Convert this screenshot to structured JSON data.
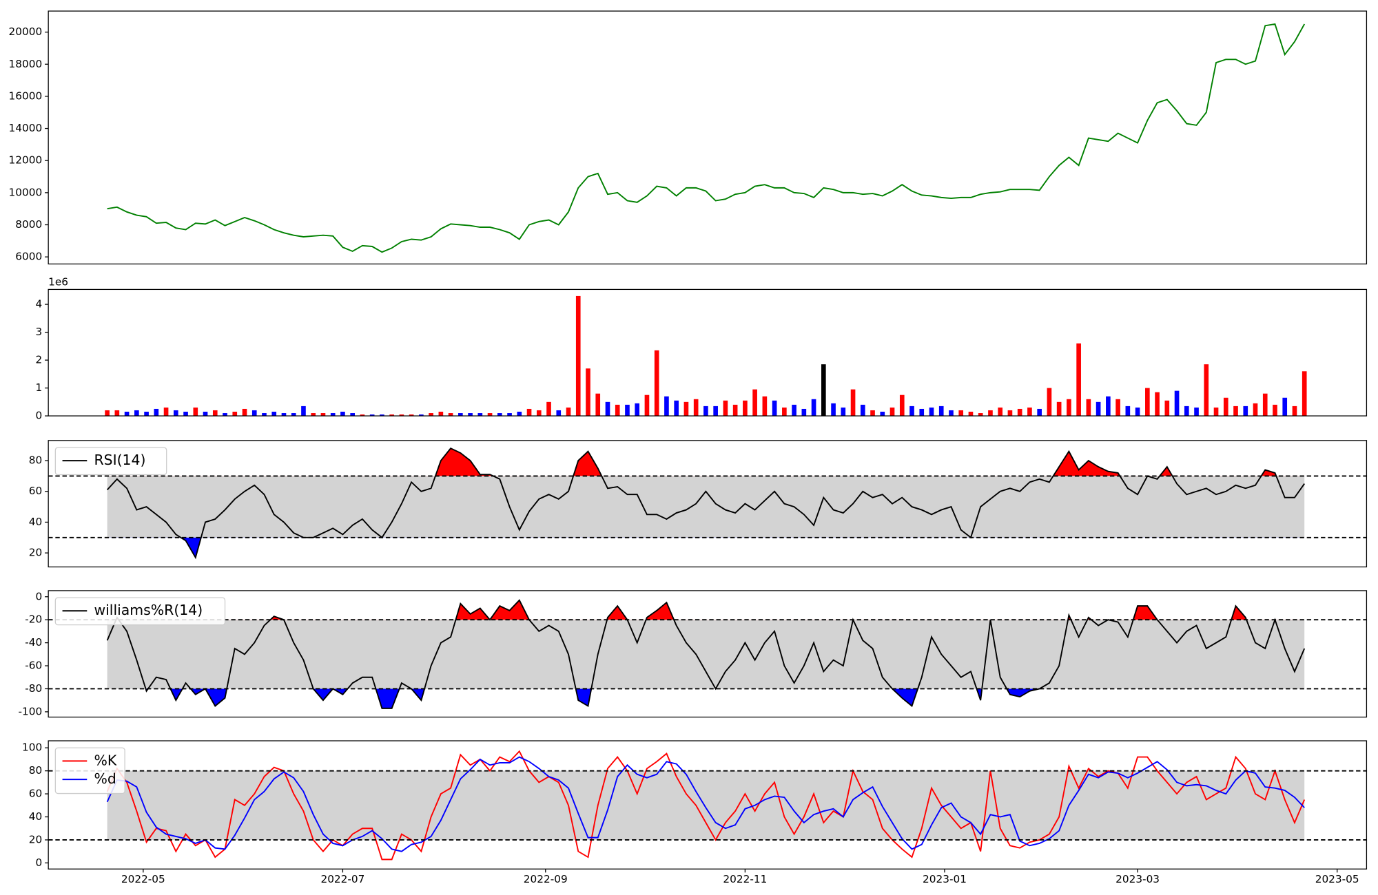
{
  "chart_data": {
    "type": "panels",
    "x": [
      19,
      22,
      25,
      28,
      31,
      34,
      37,
      40,
      43,
      46,
      49,
      52,
      55,
      58,
      61,
      64,
      67,
      70,
      73,
      76,
      79,
      82,
      85,
      88,
      91,
      94,
      97,
      100,
      103,
      106,
      109,
      112,
      115,
      118,
      121,
      124,
      127,
      130,
      133,
      136,
      139,
      142,
      145,
      148,
      151,
      154,
      157,
      160,
      163,
      166,
      169,
      172,
      175,
      178,
      181,
      184,
      187,
      190,
      193,
      196,
      199,
      202,
      205,
      208,
      211,
      214,
      217,
      220,
      223,
      226,
      229,
      232,
      235,
      238,
      241,
      244,
      247,
      250,
      253,
      256,
      259,
      262,
      265,
      268,
      271,
      274,
      277,
      280,
      283,
      286,
      289,
      292,
      295,
      298,
      301,
      304,
      307,
      310,
      313,
      316,
      319,
      322,
      325,
      328,
      331,
      334,
      337,
      340,
      343,
      346,
      349,
      352,
      355,
      358,
      361,
      364,
      367,
      370,
      373,
      376,
      379,
      382,
      385
    ],
    "xlim": [
      1,
      404
    ],
    "xticks": [
      {
        "value": 30,
        "label": "2022-05"
      },
      {
        "value": 91,
        "label": "2022-07"
      },
      {
        "value": 153,
        "label": "2022-09"
      },
      {
        "value": 214,
        "label": "2022-11"
      },
      {
        "value": 275,
        "label": "2023-01"
      },
      {
        "value": 334,
        "label": "2023-03"
      },
      {
        "value": 395,
        "label": "2023-05"
      }
    ],
    "panels": [
      {
        "type": "line",
        "ylim": [
          5560,
          21310
        ],
        "yticks": [
          6000,
          8000,
          10000,
          12000,
          14000,
          16000,
          18000,
          20000
        ],
        "series": [
          {
            "color": "green",
            "values": [
              9000,
              9100,
              8800,
              8600,
              8500,
              8100,
              8150,
              7800,
              7700,
              8100,
              8050,
              8300,
              7950,
              8200,
              8450,
              8250,
              8000,
              7700,
              7500,
              7350,
              7250,
              7300,
              7350,
              7300,
              6600,
              6350,
              6700,
              6650,
              6300,
              6550,
              6950,
              7100,
              7050,
              7250,
              7750,
              8050,
              8000,
              7950,
              7850,
              7850,
              7700,
              7500,
              7100,
              8000,
              8200,
              8300,
              8000,
              8800,
              10300,
              11000,
              11200,
              9900,
              10000,
              9500,
              9400,
              9800,
              10400,
              10300,
              9800,
              10300,
              10300,
              10100,
              9500,
              9600,
              9900,
              10000,
              10400,
              10500,
              10300,
              10300,
              10000,
              9950,
              9700,
              10300,
              10200,
              10000,
              10000,
              9900,
              9950,
              9800,
              10100,
              10500,
              10100,
              9850,
              9800,
              9700,
              9650,
              9700,
              9700,
              9900,
              10000,
              10050,
              10200,
              10200,
              10200,
              10150,
              11000,
              11700,
              12200,
              11700,
              13400,
              13300,
              13200,
              13700,
              13400,
              13100,
              14500,
              15600,
              15800,
              15100,
              14300,
              14200,
              15000,
              18100,
              18300,
              18300,
              18000,
              18200,
              20400,
              20500,
              18600,
              19400,
              20500
            ]
          }
        ]
      },
      {
        "type": "bar",
        "ylim": [
          0,
          4.535
        ],
        "yticks": [
          0,
          1,
          2,
          3,
          4
        ],
        "offset_label": "1e6",
        "values": [
          0.2,
          0.2,
          0.15,
          0.2,
          0.15,
          0.25,
          0.3,
          0.2,
          0.15,
          0.3,
          0.15,
          0.2,
          0.1,
          0.15,
          0.25,
          0.2,
          0.1,
          0.15,
          0.1,
          0.1,
          0.35,
          0.1,
          0.1,
          0.1,
          0.15,
          0.1,
          0.05,
          0.05,
          0.05,
          0.05,
          0.05,
          0.05,
          0.05,
          0.1,
          0.15,
          0.1,
          0.1,
          0.1,
          0.1,
          0.1,
          0.1,
          0.1,
          0.15,
          0.25,
          0.2,
          0.5,
          0.2,
          0.3,
          4.3,
          1.7,
          0.8,
          0.5,
          0.4,
          0.4,
          0.45,
          0.75,
          2.35,
          0.7,
          0.55,
          0.5,
          0.6,
          0.35,
          0.35,
          0.55,
          0.4,
          0.55,
          0.95,
          0.7,
          0.55,
          0.3,
          0.4,
          0.25,
          0.6,
          1.85,
          0.45,
          0.3,
          0.95,
          0.4,
          0.2,
          0.15,
          0.3,
          0.75,
          0.35,
          0.25,
          0.3,
          0.35,
          0.2,
          0.2,
          0.15,
          0.1,
          0.2,
          0.3,
          0.2,
          0.25,
          0.3,
          0.25,
          1.0,
          0.5,
          0.6,
          2.6,
          0.6,
          0.5,
          0.7,
          0.6,
          0.35,
          0.3,
          1.0,
          0.85,
          0.55,
          0.9,
          0.35,
          0.3,
          1.85,
          0.3,
          0.65,
          0.35,
          0.35,
          0.45,
          0.8,
          0.4,
          0.65,
          0.35,
          1.6
        ],
        "colors": [
          "red",
          "red",
          "blue",
          "blue",
          "blue",
          "blue",
          "red",
          "blue",
          "blue",
          "red",
          "blue",
          "red",
          "blue",
          "red",
          "red",
          "blue",
          "blue",
          "blue",
          "blue",
          "blue",
          "blue",
          "red",
          "red",
          "blue",
          "blue",
          "blue",
          "red",
          "blue",
          "blue",
          "red",
          "red",
          "red",
          "blue",
          "red",
          "red",
          "red",
          "blue",
          "blue",
          "blue",
          "red",
          "blue",
          "blue",
          "blue",
          "red",
          "red",
          "red",
          "blue",
          "red",
          "red",
          "red",
          "red",
          "blue",
          "red",
          "blue",
          "blue",
          "red",
          "red",
          "blue",
          "blue",
          "red",
          "red",
          "blue",
          "blue",
          "red",
          "red",
          "red",
          "red",
          "red",
          "blue",
          "red",
          "blue",
          "blue",
          "blue",
          "black",
          "blue",
          "blue",
          "red",
          "blue",
          "red",
          "blue",
          "red",
          "red",
          "blue",
          "blue",
          "blue",
          "blue",
          "blue",
          "red",
          "red",
          "red",
          "red",
          "red",
          "red",
          "red",
          "red",
          "blue",
          "red",
          "red",
          "red",
          "red",
          "red",
          "blue",
          "blue",
          "red",
          "blue",
          "blue",
          "red",
          "red",
          "red",
          "blue",
          "blue",
          "blue",
          "red",
          "red",
          "red",
          "red",
          "blue",
          "red",
          "red",
          "red",
          "blue",
          "red",
          "red"
        ]
      },
      {
        "type": "oscillator",
        "ylim": [
          10.9,
          93.1
        ],
        "yticks": [
          20,
          40,
          60,
          80
        ],
        "thresholds": [
          30,
          70
        ],
        "band_color": "#d3d3d3",
        "above_color": "red",
        "below_color": "blue",
        "legend": "upper left",
        "series": [
          {
            "name": "RSI(14)",
            "color": "black",
            "values": [
              61,
              68,
              62,
              48,
              50,
              45,
              40,
              32,
              28,
              17,
              40,
              42,
              48,
              55,
              60,
              64,
              58,
              45,
              40,
              33,
              30,
              30,
              33,
              36,
              32,
              38,
              42,
              35,
              30,
              40,
              52,
              66,
              60,
              62,
              80,
              88,
              85,
              80,
              71,
              71,
              68,
              50,
              35,
              47,
              55,
              58,
              55,
              60,
              80,
              86,
              75,
              62,
              63,
              58,
              58,
              45,
              45,
              42,
              46,
              48,
              52,
              60,
              52,
              48,
              46,
              52,
              48,
              54,
              60,
              52,
              50,
              45,
              38,
              56,
              48,
              46,
              52,
              60,
              56,
              58,
              52,
              56,
              50,
              48,
              45,
              48,
              50,
              35,
              30,
              50,
              55,
              60,
              62,
              60,
              66,
              68,
              66,
              76,
              86,
              74,
              80,
              76,
              73,
              72,
              62,
              58,
              70,
              68,
              76,
              65,
              58,
              60,
              62,
              58,
              60,
              64,
              62,
              64,
              74,
              72,
              56,
              56,
              65
            ]
          }
        ]
      },
      {
        "type": "oscillator",
        "ylim": [
          -104.6,
          5.3
        ],
        "yticks": [
          -100,
          -80,
          -60,
          -40,
          -20,
          0
        ],
        "thresholds": [
          -80,
          -20
        ],
        "band_color": "#d3d3d3",
        "above_color": "red",
        "below_color": "blue",
        "legend": "upper left",
        "series": [
          {
            "name": "williams%R(14)",
            "color": "black",
            "values": [
              -38,
              -18,
              -30,
              -55,
              -82,
              -70,
              -72,
              -90,
              -75,
              -85,
              -80,
              -95,
              -88,
              -45,
              -50,
              -40,
              -25,
              -17,
              -20,
              -40,
              -55,
              -80,
              -90,
              -80,
              -85,
              -75,
              -70,
              -70,
              -97,
              -97,
              -75,
              -80,
              -90,
              -60,
              -40,
              -35,
              -6,
              -15,
              -10,
              -20,
              -8,
              -12,
              -3,
              -20,
              -30,
              -25,
              -30,
              -50,
              -90,
              -95,
              -50,
              -18,
              -8,
              -20,
              -40,
              -18,
              -12,
              -5,
              -25,
              -40,
              -50,
              -65,
              -80,
              -65,
              -55,
              -40,
              -55,
              -40,
              -30,
              -60,
              -75,
              -60,
              -40,
              -65,
              -55,
              -60,
              -20,
              -38,
              -45,
              -70,
              -80,
              -88,
              -95,
              -70,
              -35,
              -50,
              -60,
              -70,
              -65,
              -90,
              -20,
              -70,
              -85,
              -87,
              -82,
              -80,
              -75,
              -60,
              -16,
              -35,
              -18,
              -25,
              -20,
              -22,
              -35,
              -8,
              -8,
              -20,
              -30,
              -40,
              -30,
              -25,
              -45,
              -40,
              -35,
              -8,
              -18,
              -40,
              -45,
              -20,
              -45,
              -65,
              -45
            ]
          }
        ]
      },
      {
        "type": "oscillator",
        "ylim": [
          -5.3,
          106.1
        ],
        "yticks": [
          0,
          20,
          40,
          60,
          80,
          100
        ],
        "thresholds": [
          20,
          80
        ],
        "band_color": "#d3d3d3",
        "legend": "upper left",
        "series": [
          {
            "name": "%K",
            "color": "red",
            "values": [
              62,
              82,
              70,
              45,
              18,
              30,
              28,
              10,
              25,
              15,
              20,
              5,
              12,
              55,
              50,
              60,
              75,
              83,
              80,
              60,
              45,
              20,
              10,
              20,
              15,
              25,
              30,
              30,
              3,
              3,
              25,
              20,
              10,
              40,
              60,
              65,
              94,
              85,
              90,
              80,
              92,
              88,
              97,
              80,
              70,
              75,
              70,
              50,
              10,
              5,
              50,
              82,
              92,
              80,
              60,
              82,
              88,
              95,
              75,
              60,
              50,
              35,
              20,
              35,
              45,
              60,
              45,
              60,
              70,
              40,
              25,
              40,
              60,
              35,
              45,
              40,
              80,
              62,
              55,
              30,
              20,
              12,
              5,
              30,
              65,
              50,
              40,
              30,
              35,
              10,
              80,
              30,
              15,
              13,
              18,
              20,
              25,
              40,
              84,
              65,
              82,
              75,
              80,
              78,
              65,
              92,
              92,
              80,
              70,
              60,
              70,
              75,
              55,
              60,
              65,
              92,
              82,
              60,
              55,
              80,
              55,
              35,
              55
            ]
          },
          {
            "name": "%d",
            "color": "blue",
            "values": [
              53,
              72,
              71,
              66,
              44,
              31,
              25,
              23,
              21,
              17,
              20,
              13,
              12,
              24,
              39,
              55,
              62,
              73,
              79,
              74,
              62,
              42,
              25,
              17,
              15,
              20,
              23,
              28,
              21,
              12,
              10,
              16,
              18,
              23,
              37,
              55,
              73,
              81,
              90,
              85,
              87,
              87,
              92,
              88,
              82,
              75,
              72,
              65,
              43,
              22,
              22,
              46,
              75,
              85,
              77,
              74,
              77,
              88,
              86,
              77,
              62,
              48,
              35,
              30,
              33,
              47,
              50,
              55,
              58,
              57,
              45,
              35,
              42,
              45,
              47,
              40,
              55,
              61,
              66,
              49,
              35,
              21,
              12,
              16,
              33,
              48,
              52,
              40,
              35,
              25,
              42,
              40,
              42,
              19,
              15,
              17,
              21,
              28,
              50,
              63,
              77,
              74,
              79,
              78,
              74,
              78,
              83,
              88,
              81,
              70,
              67,
              68,
              67,
              63,
              60,
              72,
              80,
              78,
              66,
              65,
              63,
              57,
              48
            ]
          }
        ]
      }
    ]
  }
}
